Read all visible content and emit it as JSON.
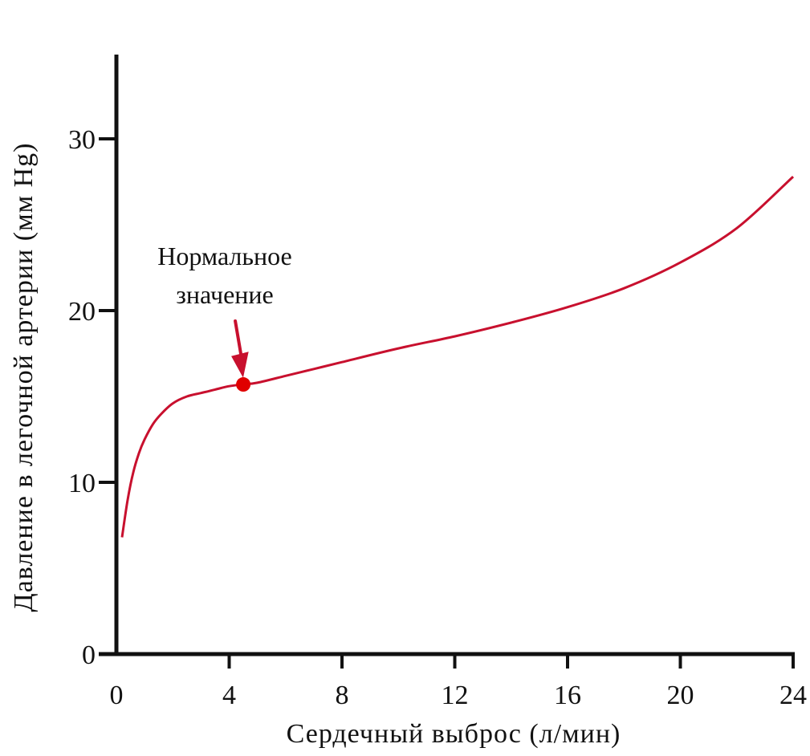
{
  "chart_data": {
    "type": "line",
    "title": "",
    "xlabel": "Сердечный выброс (л/мин)",
    "ylabel": "Давление в легочной артерии (мм Hg)",
    "xlim": [
      0,
      24
    ],
    "ylim": [
      0,
      30
    ],
    "x_ticks": [
      "0",
      "4",
      "8",
      "12",
      "16",
      "20",
      "24"
    ],
    "y_ticks": [
      "0",
      "10",
      "20",
      "30"
    ],
    "grid": false,
    "legend": "none",
    "series": [
      {
        "color": "#c8102e",
        "points": [
          [
            0.2,
            6.8
          ],
          [
            0.4,
            9.0
          ],
          [
            0.6,
            10.6
          ],
          [
            0.8,
            11.7
          ],
          [
            1.0,
            12.5
          ],
          [
            1.3,
            13.4
          ],
          [
            1.6,
            14.0
          ],
          [
            2.0,
            14.6
          ],
          [
            2.5,
            15.0
          ],
          [
            3.0,
            15.2
          ],
          [
            3.5,
            15.4
          ],
          [
            4.0,
            15.6
          ],
          [
            4.5,
            15.7
          ],
          [
            5.0,
            15.8
          ],
          [
            6.0,
            16.2
          ],
          [
            7.0,
            16.6
          ],
          [
            8.0,
            17.0
          ],
          [
            10.0,
            17.8
          ],
          [
            12.0,
            18.5
          ],
          [
            14.0,
            19.3
          ],
          [
            16.0,
            20.2
          ],
          [
            18.0,
            21.3
          ],
          [
            20.0,
            22.8
          ],
          [
            22.0,
            24.8
          ],
          [
            24.0,
            27.8
          ]
        ]
      }
    ],
    "annotations": [
      {
        "text_lines": [
          "Нормальное",
          "значение"
        ],
        "x": 4.5,
        "y": 15.7
      }
    ],
    "marker_color": "#e00000"
  }
}
